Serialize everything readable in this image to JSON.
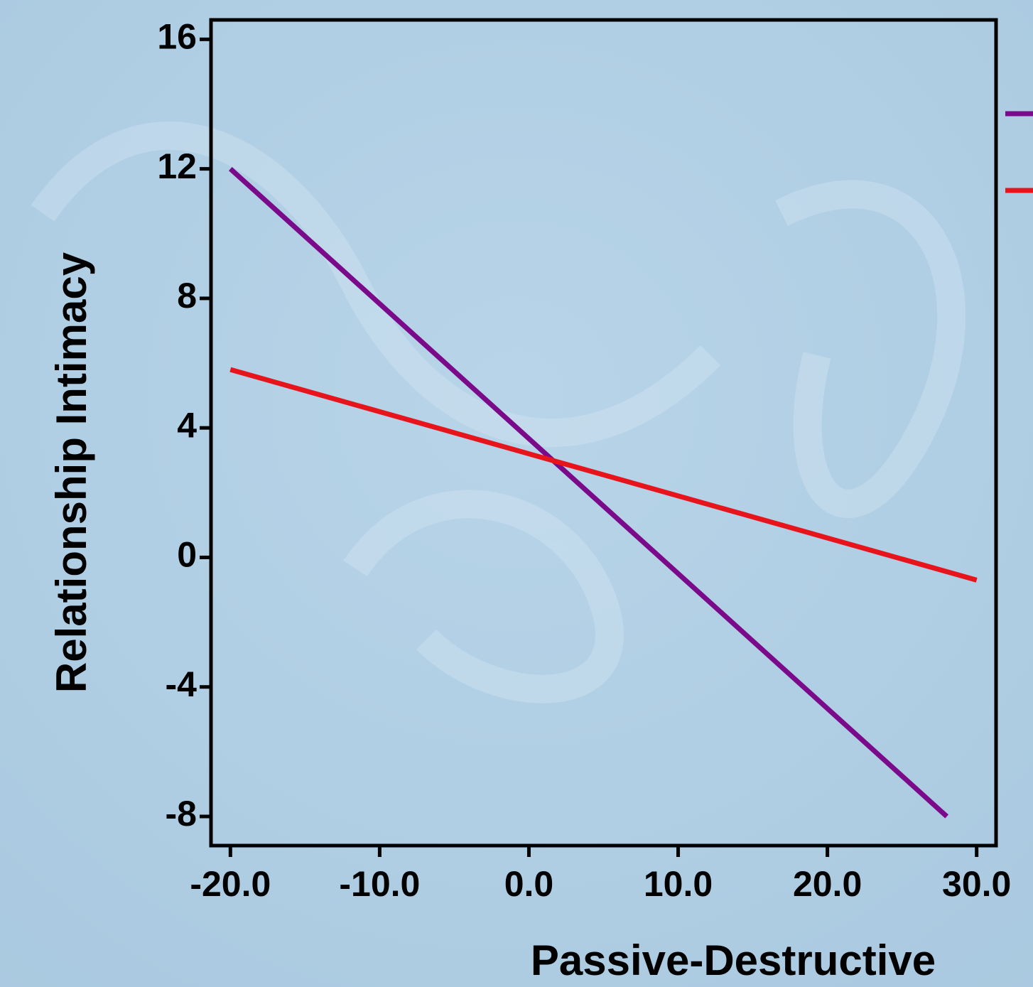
{
  "chart_data": {
    "type": "line",
    "x_label": "Passive-Destructive",
    "y_label": "Relationship Intimacy",
    "series": [
      {
        "color": "#7a0a8a",
        "x": [
          -20,
          28
        ],
        "values": [
          12,
          -8
        ]
      },
      {
        "color": "#e8141c",
        "x": [
          -20,
          30
        ],
        "values": [
          5.8,
          -0.7
        ]
      }
    ],
    "xlim": [
      -21.3,
      31.3
    ],
    "xticks": [
      {
        "value": -20,
        "label": "-20.0"
      },
      {
        "value": -10,
        "label": "-10.0"
      },
      {
        "value": 0,
        "label": "0.0"
      },
      {
        "value": 10,
        "label": "10.0"
      },
      {
        "value": 20,
        "label": "20.0"
      },
      {
        "value": 30,
        "label": "30.0"
      }
    ],
    "ylim": [
      -8.9,
      16.6
    ],
    "yticks": [
      -8,
      -4,
      0,
      4,
      8,
      12,
      16
    ],
    "grid": false
  }
}
